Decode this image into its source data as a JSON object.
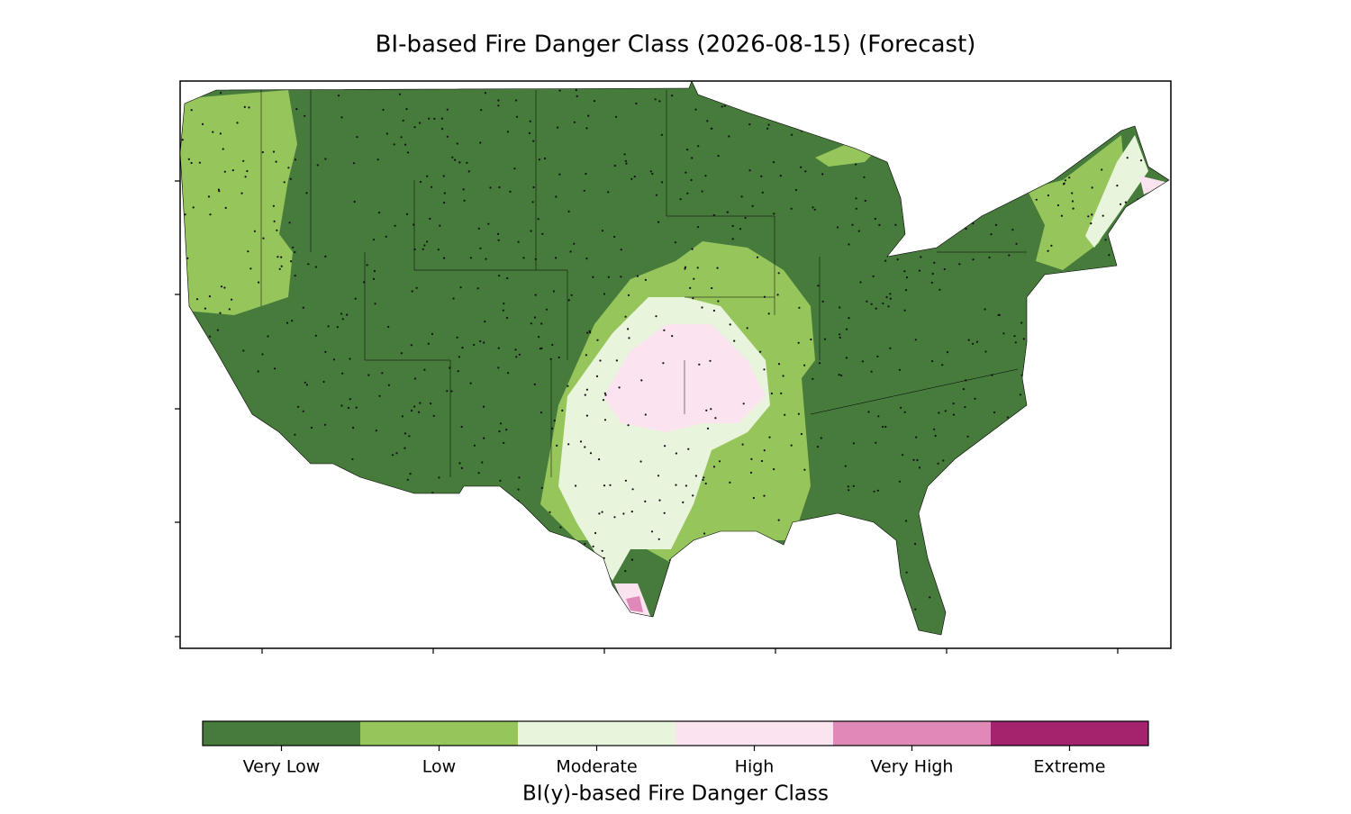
{
  "title": "BI-based Fire Danger Class (2026-08-15) (Forecast)",
  "colorbar": {
    "label": "BI(y)-based Fire Danger Class",
    "classes": [
      {
        "label": "Very Low",
        "color": "#467b3c"
      },
      {
        "label": "Low",
        "color": "#96c55b"
      },
      {
        "label": "Moderate",
        "color": "#e8f4dc"
      },
      {
        "label": "High",
        "color": "#fbe3f0"
      },
      {
        "label": "Very High",
        "color": "#e088b8"
      },
      {
        "label": "Extreme",
        "color": "#a3246c"
      }
    ]
  }
}
